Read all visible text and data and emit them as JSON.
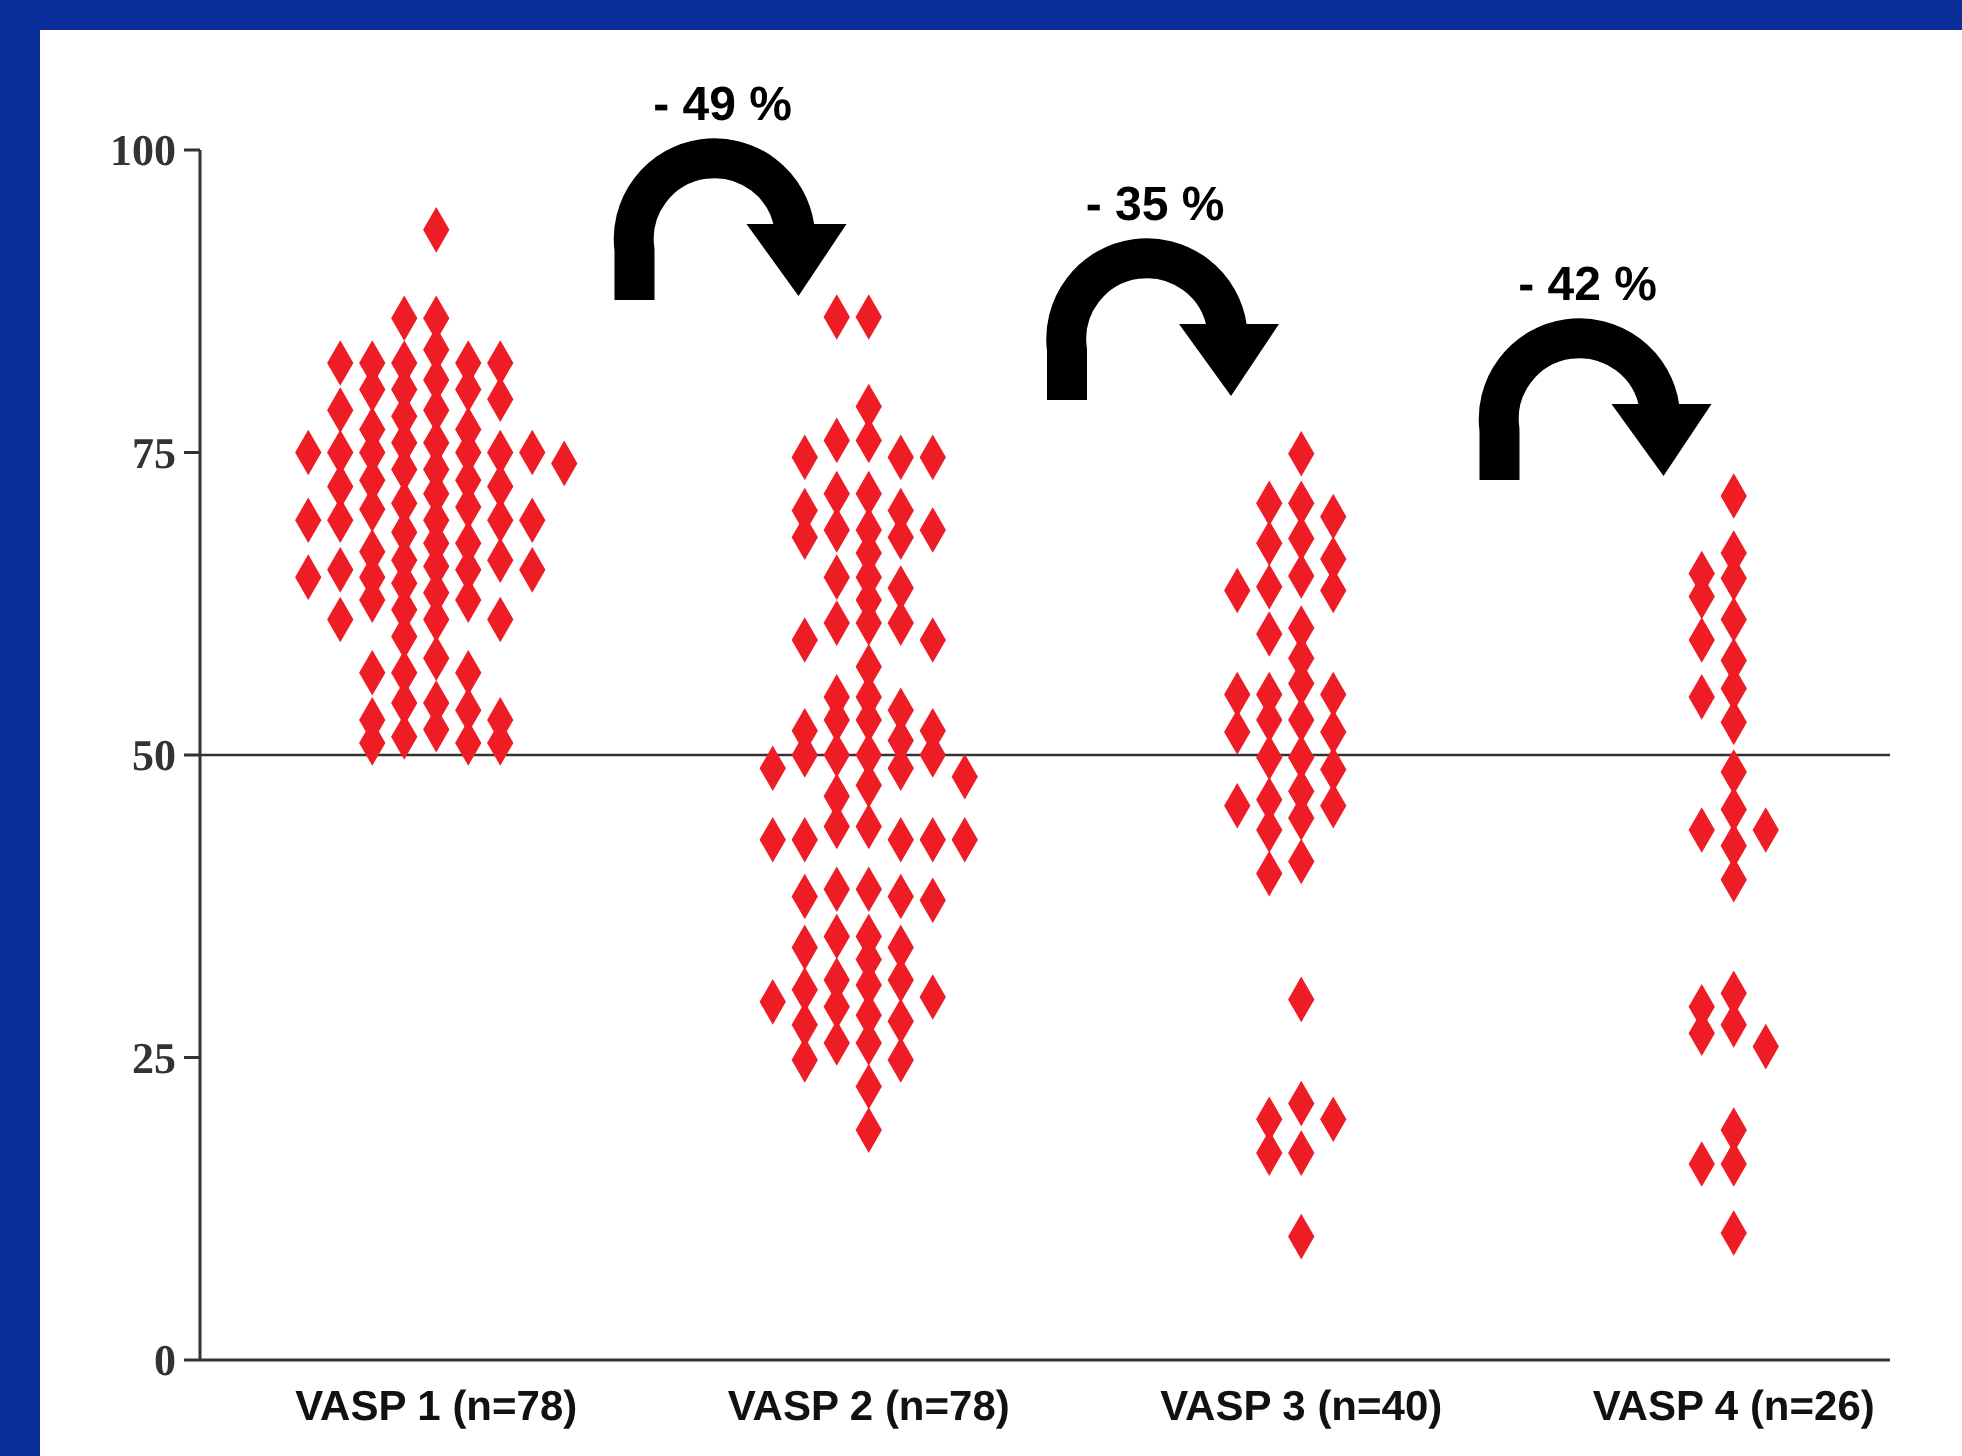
{
  "chart_data": {
    "type": "scatter",
    "categories": [
      "VASP 1 (n=78)",
      "VASP 2 (n=78)",
      "VASP 3 (n=40)",
      "VASP 4 (n=26)"
    ],
    "ylim": [
      0,
      100
    ],
    "yticks": [
      0,
      25,
      50,
      75,
      100
    ],
    "grid": false,
    "marker": "diamond",
    "ref_lines": [
      {
        "axis": "y",
        "value": 50,
        "color": "#333333"
      }
    ],
    "annotations": [
      "- 49 %",
      "- 35 %",
      "- 42 %"
    ],
    "series": [
      {
        "color": "#ee1c25",
        "x": [
          "VASP 1 (n=78)",
          "VASP 1 (n=78)",
          "VASP 1 (n=78)",
          "VASP 1 (n=78)",
          "VASP 1 (n=78)",
          "VASP 1 (n=78)",
          "VASP 1 (n=78)",
          "VASP 1 (n=78)",
          "VASP 1 (n=78)",
          "VASP 1 (n=78)",
          "VASP 1 (n=78)",
          "VASP 1 (n=78)",
          "VASP 1 (n=78)",
          "VASP 1 (n=78)",
          "VASP 1 (n=78)",
          "VASP 1 (n=78)",
          "VASP 1 (n=78)",
          "VASP 1 (n=78)",
          "VASP 1 (n=78)",
          "VASP 1 (n=78)",
          "VASP 1 (n=78)",
          "VASP 1 (n=78)",
          "VASP 1 (n=78)",
          "VASP 1 (n=78)",
          "VASP 1 (n=78)",
          "VASP 1 (n=78)",
          "VASP 1 (n=78)",
          "VASP 1 (n=78)",
          "VASP 1 (n=78)",
          "VASP 1 (n=78)",
          "VASP 1 (n=78)",
          "VASP 1 (n=78)",
          "VASP 1 (n=78)",
          "VASP 1 (n=78)",
          "VASP 1 (n=78)",
          "VASP 1 (n=78)",
          "VASP 1 (n=78)",
          "VASP 1 (n=78)",
          "VASP 1 (n=78)",
          "VASP 1 (n=78)",
          "VASP 1 (n=78)",
          "VASP 1 (n=78)",
          "VASP 1 (n=78)",
          "VASP 1 (n=78)",
          "VASP 1 (n=78)",
          "VASP 1 (n=78)",
          "VASP 1 (n=78)",
          "VASP 1 (n=78)",
          "VASP 1 (n=78)",
          "VASP 1 (n=78)",
          "VASP 1 (n=78)",
          "VASP 1 (n=78)",
          "VASP 1 (n=78)",
          "VASP 1 (n=78)",
          "VASP 1 (n=78)",
          "VASP 1 (n=78)",
          "VASP 1 (n=78)",
          "VASP 1 (n=78)",
          "VASP 1 (n=78)",
          "VASP 1 (n=78)",
          "VASP 1 (n=78)",
          "VASP 1 (n=78)",
          "VASP 1 (n=78)",
          "VASP 1 (n=78)",
          "VASP 1 (n=78)",
          "VASP 1 (n=78)",
          "VASP 1 (n=78)",
          "VASP 1 (n=78)",
          "VASP 1 (n=78)",
          "VASP 1 (n=78)",
          "VASP 1 (n=78)",
          "VASP 1 (n=78)",
          "VASP 1 (n=78)",
          "VASP 1 (n=78)",
          "VASP 1 (n=78)",
          "VASP 1 (n=78)",
          "VASP 1 (n=78)",
          "VASP 1 (n=78)"
        ],
        "values": [
          93.4,
          86.1,
          86.1,
          83.5,
          82.4,
          82.4,
          82.4,
          82.4,
          82.4,
          81,
          80.2,
          80.2,
          80.2,
          79.4,
          78.5,
          78.5,
          78,
          76.9,
          76.9,
          75.8,
          75.8,
          75,
          75,
          75,
          75,
          75,
          75,
          74.1,
          73.6,
          73.6,
          72.7,
          72.7,
          72.2,
          72.2,
          71.6,
          70.8,
          70.5,
          70.3,
          69.4,
          69.4,
          69.4,
          69.4,
          69.4,
          68.4,
          67.5,
          67.5,
          66.8,
          66.1,
          66.1,
          65.6,
          65.3,
          65.3,
          65.3,
          64.7,
          64.7,
          64.2,
          63.4,
          62.8,
          62.8,
          62,
          61.2,
          61.2,
          61.2,
          59.8,
          58,
          56.8,
          56.8,
          56.8,
          54.3,
          54.3,
          53.7,
          52.9,
          52.9,
          52.1,
          51.5,
          51,
          51,
          51
        ]
      },
      {
        "color": "#ee1c25",
        "x": [
          "VASP 2 (n=78)",
          "VASP 2 (n=78)",
          "VASP 2 (n=78)",
          "VASP 2 (n=78)",
          "VASP 2 (n=78)",
          "VASP 2 (n=78)",
          "VASP 2 (n=78)",
          "VASP 2 (n=78)",
          "VASP 2 (n=78)",
          "VASP 2 (n=78)",
          "VASP 2 (n=78)",
          "VASP 2 (n=78)",
          "VASP 2 (n=78)",
          "VASP 2 (n=78)",
          "VASP 2 (n=78)",
          "VASP 2 (n=78)",
          "VASP 2 (n=78)",
          "VASP 2 (n=78)",
          "VASP 2 (n=78)",
          "VASP 2 (n=78)",
          "VASP 2 (n=78)",
          "VASP 2 (n=78)",
          "VASP 2 (n=78)",
          "VASP 2 (n=78)",
          "VASP 2 (n=78)",
          "VASP 2 (n=78)",
          "VASP 2 (n=78)",
          "VASP 2 (n=78)",
          "VASP 2 (n=78)",
          "VASP 2 (n=78)",
          "VASP 2 (n=78)",
          "VASP 2 (n=78)",
          "VASP 2 (n=78)",
          "VASP 2 (n=78)",
          "VASP 2 (n=78)",
          "VASP 2 (n=78)",
          "VASP 2 (n=78)",
          "VASP 2 (n=78)",
          "VASP 2 (n=78)",
          "VASP 2 (n=78)",
          "VASP 2 (n=78)",
          "VASP 2 (n=78)",
          "VASP 2 (n=78)",
          "VASP 2 (n=78)",
          "VASP 2 (n=78)",
          "VASP 2 (n=78)",
          "VASP 2 (n=78)",
          "VASP 2 (n=78)",
          "VASP 2 (n=78)",
          "VASP 2 (n=78)",
          "VASP 2 (n=78)",
          "VASP 2 (n=78)",
          "VASP 2 (n=78)",
          "VASP 2 (n=78)",
          "VASP 2 (n=78)",
          "VASP 2 (n=78)",
          "VASP 2 (n=78)",
          "VASP 2 (n=78)",
          "VASP 2 (n=78)",
          "VASP 2 (n=78)",
          "VASP 2 (n=78)",
          "VASP 2 (n=78)",
          "VASP 2 (n=78)",
          "VASP 2 (n=78)",
          "VASP 2 (n=78)",
          "VASP 2 (n=78)",
          "VASP 2 (n=78)",
          "VASP 2 (n=78)",
          "VASP 2 (n=78)",
          "VASP 2 (n=78)",
          "VASP 2 (n=78)",
          "VASP 2 (n=78)",
          "VASP 2 (n=78)",
          "VASP 2 (n=78)",
          "VASP 2 (n=78)",
          "VASP 2 (n=78)",
          "VASP 2 (n=78)",
          "VASP 2 (n=78)"
        ],
        "values": [
          86.2,
          86.2,
          78.8,
          76,
          76,
          74.6,
          74.6,
          74.6,
          71.6,
          71.6,
          70.2,
          70.2,
          68.6,
          68.6,
          68.6,
          68,
          68,
          66.7,
          64.7,
          64.7,
          63.8,
          62.8,
          60.9,
          60.9,
          60.9,
          59.5,
          59.5,
          57.3,
          54.8,
          54.8,
          53.7,
          52.9,
          52.9,
          52,
          52,
          51.2,
          50,
          50,
          50,
          50,
          48.9,
          48.9,
          48.2,
          47.5,
          46.6,
          44.1,
          44.1,
          43,
          43,
          43,
          43,
          43,
          38.9,
          38.9,
          38.3,
          38.3,
          38,
          35,
          35,
          34.1,
          34.1,
          33.1,
          31.4,
          31.4,
          31,
          30.6,
          30,
          29.6,
          29.2,
          28.5,
          28,
          27.7,
          26.2,
          26.2,
          24.8,
          24.8,
          22.6,
          19
        ]
      },
      {
        "color": "#ee1c25",
        "x": [
          "VASP 3 (n=40)",
          "VASP 3 (n=40)",
          "VASP 3 (n=40)",
          "VASP 3 (n=40)",
          "VASP 3 (n=40)",
          "VASP 3 (n=40)",
          "VASP 3 (n=40)",
          "VASP 3 (n=40)",
          "VASP 3 (n=40)",
          "VASP 3 (n=40)",
          "VASP 3 (n=40)",
          "VASP 3 (n=40)",
          "VASP 3 (n=40)",
          "VASP 3 (n=40)",
          "VASP 3 (n=40)",
          "VASP 3 (n=40)",
          "VASP 3 (n=40)",
          "VASP 3 (n=40)",
          "VASP 3 (n=40)",
          "VASP 3 (n=40)",
          "VASP 3 (n=40)",
          "VASP 3 (n=40)",
          "VASP 3 (n=40)",
          "VASP 3 (n=40)",
          "VASP 3 (n=40)",
          "VASP 3 (n=40)",
          "VASP 3 (n=40)",
          "VASP 3 (n=40)",
          "VASP 3 (n=40)",
          "VASP 3 (n=40)",
          "VASP 3 (n=40)",
          "VASP 3 (n=40)",
          "VASP 3 (n=40)",
          "VASP 3 (n=40)",
          "VASP 3 (n=40)",
          "VASP 3 (n=40)",
          "VASP 3 (n=40)",
          "VASP 3 (n=40)",
          "VASP 3 (n=40)",
          "VASP 3 (n=40)"
        ],
        "values": [
          74.9,
          70.8,
          70.8,
          69.7,
          67.9,
          67.5,
          66.2,
          64.8,
          63.9,
          63.6,
          63.6,
          60.5,
          60,
          58,
          55.9,
          55,
          55,
          55,
          52.9,
          52.9,
          51.9,
          51.9,
          49.8,
          49.8,
          48.8,
          47,
          46.3,
          45.8,
          45.8,
          44.8,
          43.8,
          41.2,
          40.2,
          29.8,
          21.2,
          19.9,
          19.9,
          17.1,
          17.1,
          10.2
        ]
      },
      {
        "color": "#ee1c25",
        "x": [
          "VASP 4 (n=26)",
          "VASP 4 (n=26)",
          "VASP 4 (n=26)",
          "VASP 4 (n=26)",
          "VASP 4 (n=26)",
          "VASP 4 (n=26)",
          "VASP 4 (n=26)",
          "VASP 4 (n=26)",
          "VASP 4 (n=26)",
          "VASP 4 (n=26)",
          "VASP 4 (n=26)",
          "VASP 4 (n=26)",
          "VASP 4 (n=26)",
          "VASP 4 (n=26)",
          "VASP 4 (n=26)",
          "VASP 4 (n=26)",
          "VASP 4 (n=26)",
          "VASP 4 (n=26)",
          "VASP 4 (n=26)",
          "VASP 4 (n=26)",
          "VASP 4 (n=26)",
          "VASP 4 (n=26)",
          "VASP 4 (n=26)",
          "VASP 4 (n=26)",
          "VASP 4 (n=26)",
          "VASP 4 (n=26)"
        ],
        "values": [
          71.4,
          66.7,
          65,
          64.6,
          63.1,
          61.2,
          59.5,
          57.8,
          55.5,
          54.8,
          52.7,
          48.6,
          45.5,
          43.8,
          43.8,
          42.5,
          39.7,
          30.3,
          29.2,
          27.7,
          27,
          25.9,
          19,
          16.2,
          16.2,
          10.5
        ]
      }
    ]
  }
}
